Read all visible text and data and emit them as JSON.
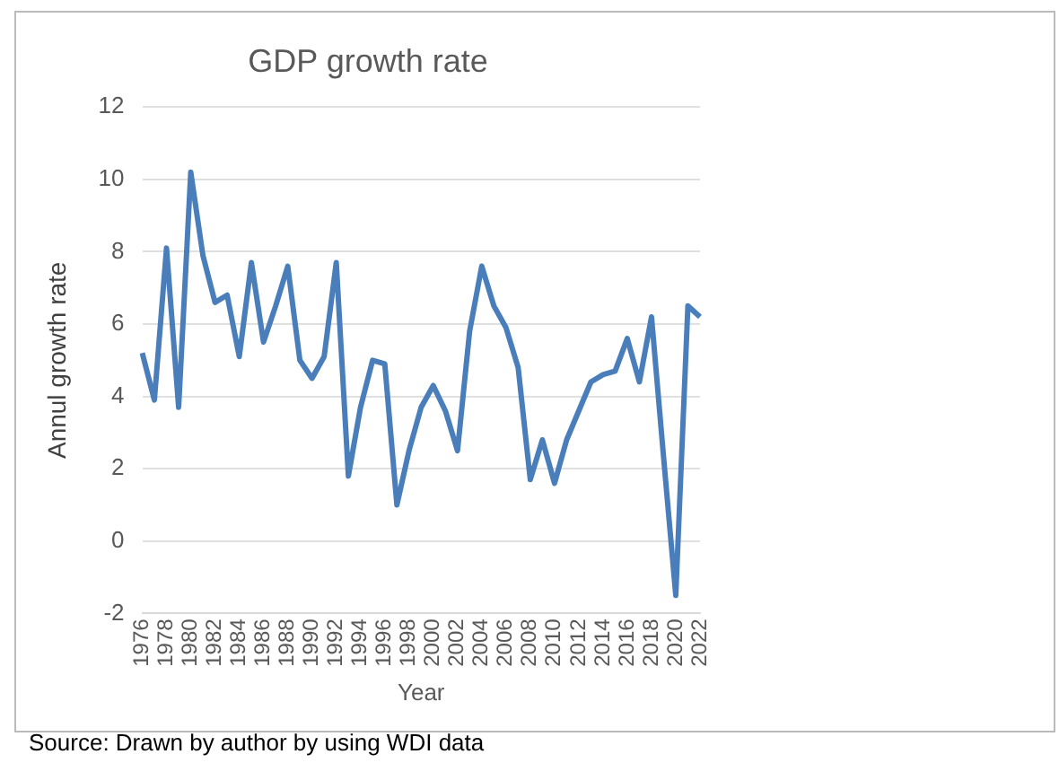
{
  "chart_data": {
    "type": "line",
    "title": "GDP growth rate",
    "xlabel": "Year",
    "ylabel": "Annul growth rate",
    "categories": [
      "1976",
      null,
      "1978",
      null,
      "1980",
      null,
      "1982",
      null,
      "1984",
      null,
      "1986",
      null,
      "1988",
      null,
      "1990",
      null,
      "1992",
      null,
      "1994",
      null,
      "1996",
      null,
      "1998",
      null,
      "2000",
      null,
      "2002",
      null,
      "2004",
      null,
      "2006",
      null,
      "2008",
      null,
      "2010",
      null,
      "2012",
      null,
      "2014",
      null,
      "2016",
      null,
      "2018",
      null,
      "2020",
      null,
      "2022"
    ],
    "series": [
      {
        "color": "#4a7ebb",
        "values": [
          5.2,
          3.9,
          8.1,
          3.7,
          10.2,
          7.9,
          6.6,
          6.8,
          5.1,
          7.7,
          5.5,
          6.5,
          7.6,
          5.0,
          4.5,
          5.1,
          7.7,
          1.8,
          3.7,
          5.0,
          4.9,
          1.0,
          2.5,
          3.7,
          4.3,
          3.6,
          2.5,
          5.8,
          7.6,
          6.5,
          5.9,
          4.8,
          1.7,
          2.8,
          1.6,
          2.8,
          3.6,
          4.4,
          4.6,
          4.7,
          5.6,
          4.4,
          6.2,
          2.3,
          -1.5,
          6.5,
          6.2
        ]
      }
    ],
    "ylim": [
      -2,
      12
    ],
    "yticks": [
      -2,
      0,
      2,
      4,
      6,
      8,
      10,
      12
    ],
    "grid": "y",
    "legend": false,
    "marker": "none",
    "line_style": "solid",
    "annotations": [
      "Source: Drawn by author by using WDI data"
    ]
  }
}
